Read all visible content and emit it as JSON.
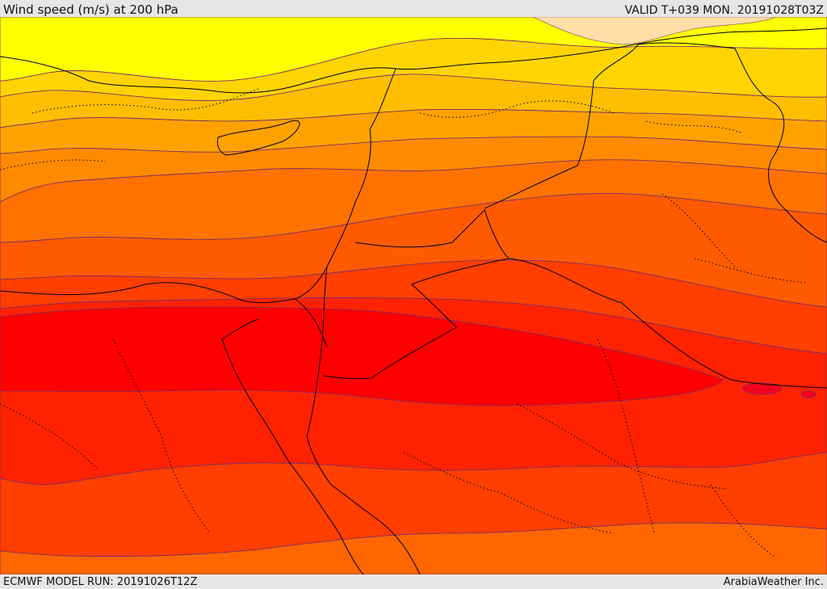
{
  "header": {
    "title": "Wind speed (m/s) at 200 hPa",
    "valid": "VALID T+039 MON. 20191028T03Z"
  },
  "footer": {
    "model_run": "ECMWF MODEL RUN: 20191026T12Z",
    "credit": "ArabiaWeather Inc."
  },
  "colors": {
    "band_lightest": "#ffdfa8",
    "band_yellow": "#ffff00",
    "band_gold": "#ffd400",
    "band_amber": "#ffbe00",
    "band_orange1": "#ffa200",
    "band_orange2": "#ff8a00",
    "band_orange3": "#ff7200",
    "band_redorange1": "#ff5a00",
    "band_redorange2": "#ff3e00",
    "band_red1": "#ff2200",
    "band_red2": "#ff0000",
    "band_core": "#f5001e",
    "contour": "#7a2a6a",
    "border": "#000000"
  }
}
